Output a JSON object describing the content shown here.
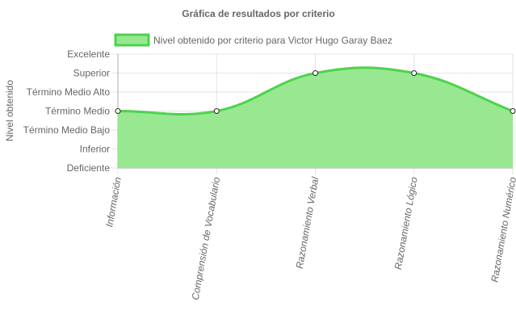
{
  "chart_data": {
    "type": "area",
    "title": "Gráfica de resultados por criterio",
    "ylabel": "Nivel obtenido",
    "xlabel": "",
    "legend_position": "top",
    "grid": true,
    "y_categories": [
      "Deficiente",
      "Inferior",
      "Término Medio Bajo",
      "Término Medio",
      "Término Medio Alto",
      "Superior",
      "Excelente"
    ],
    "categories": [
      "Información",
      "Comprensión de Vocabulario",
      "Razonamiento Verbal",
      "Razonamiento Lógico",
      "Razonamiento Numérico"
    ],
    "series": [
      {
        "name": "Nivel obtenido por criterio para Victor Hugo Garay Baez",
        "values": [
          "Término Medio",
          "Término Medio",
          "Superior",
          "Superior",
          "Término Medio"
        ],
        "color": "#4cd34c",
        "fill": "#98e891"
      }
    ]
  }
}
